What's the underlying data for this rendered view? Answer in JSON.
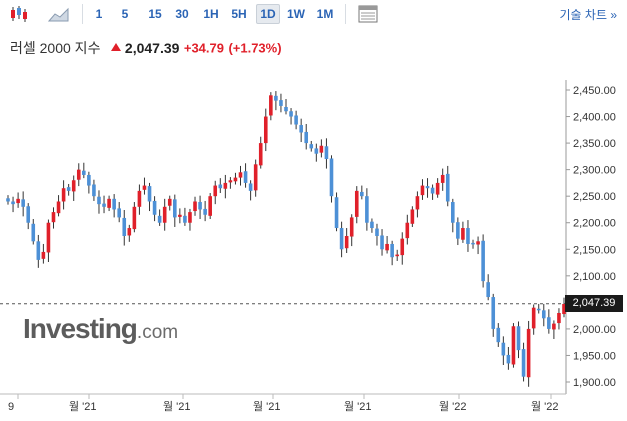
{
  "toolbar": {
    "candle_icon": "candlestick-chart-icon",
    "area_icon": "area-chart-icon",
    "periods": [
      "1",
      "5",
      "15",
      "30",
      "1H",
      "5H",
      "1D",
      "1W",
      "1M"
    ],
    "active_period": "1D",
    "table_icon": "table-view-icon",
    "technical_label": "기술 차트 »"
  },
  "quote": {
    "name": "러셀 2000 지수",
    "price": "2,047.39",
    "change": "+34.79",
    "change_pct": "(+1.73%)",
    "direction": "up",
    "up_color": "#e0202a",
    "down_color": "#4d90d6"
  },
  "watermark": {
    "brand": "Investing",
    "suffix": ".com"
  },
  "chart_data": {
    "type": "candlestick",
    "y_ticks": [
      "2,450.00",
      "2,400.00",
      "2,350.00",
      "2,300.00",
      "2,250.00",
      "2,200.00",
      "2,150.00",
      "2,100.00",
      "2,050.00",
      "2,000.00",
      "1,950.00",
      "1,900.00"
    ],
    "ylim": [
      1880,
      2465
    ],
    "x_ticks": [
      "9",
      "월 '21",
      "월 '21",
      "월 '21",
      "월 '21",
      "월 '22",
      "월 '22"
    ],
    "last_price": 2047.39,
    "last_price_label": "2,047.39",
    "closes": [
      2240,
      2235,
      2245,
      2230,
      2200,
      2165,
      2130,
      2145,
      2200,
      2220,
      2240,
      2265,
      2260,
      2280,
      2300,
      2290,
      2270,
      2250,
      2235,
      2230,
      2245,
      2225,
      2210,
      2175,
      2190,
      2230,
      2260,
      2270,
      2240,
      2215,
      2200,
      2230,
      2245,
      2210,
      2215,
      2200,
      2220,
      2240,
      2225,
      2215,
      2250,
      2270,
      2265,
      2275,
      2280,
      2285,
      2295,
      2275,
      2260,
      2310,
      2350,
      2400,
      2440,
      2430,
      2420,
      2410,
      2400,
      2385,
      2370,
      2350,
      2340,
      2330,
      2345,
      2320,
      2250,
      2190,
      2150,
      2175,
      2210,
      2260,
      2250,
      2200,
      2190,
      2175,
      2150,
      2160,
      2135,
      2140,
      2170,
      2200,
      2225,
      2250,
      2270,
      2265,
      2255,
      2275,
      2290,
      2240,
      2200,
      2170,
      2190,
      2160,
      2160,
      2165,
      2090,
      2060,
      2000,
      1975,
      1950,
      1935,
      2005,
      1960,
      1910,
      2000,
      2040,
      2035,
      2020,
      2000,
      2010,
      2030,
      2047
    ]
  }
}
